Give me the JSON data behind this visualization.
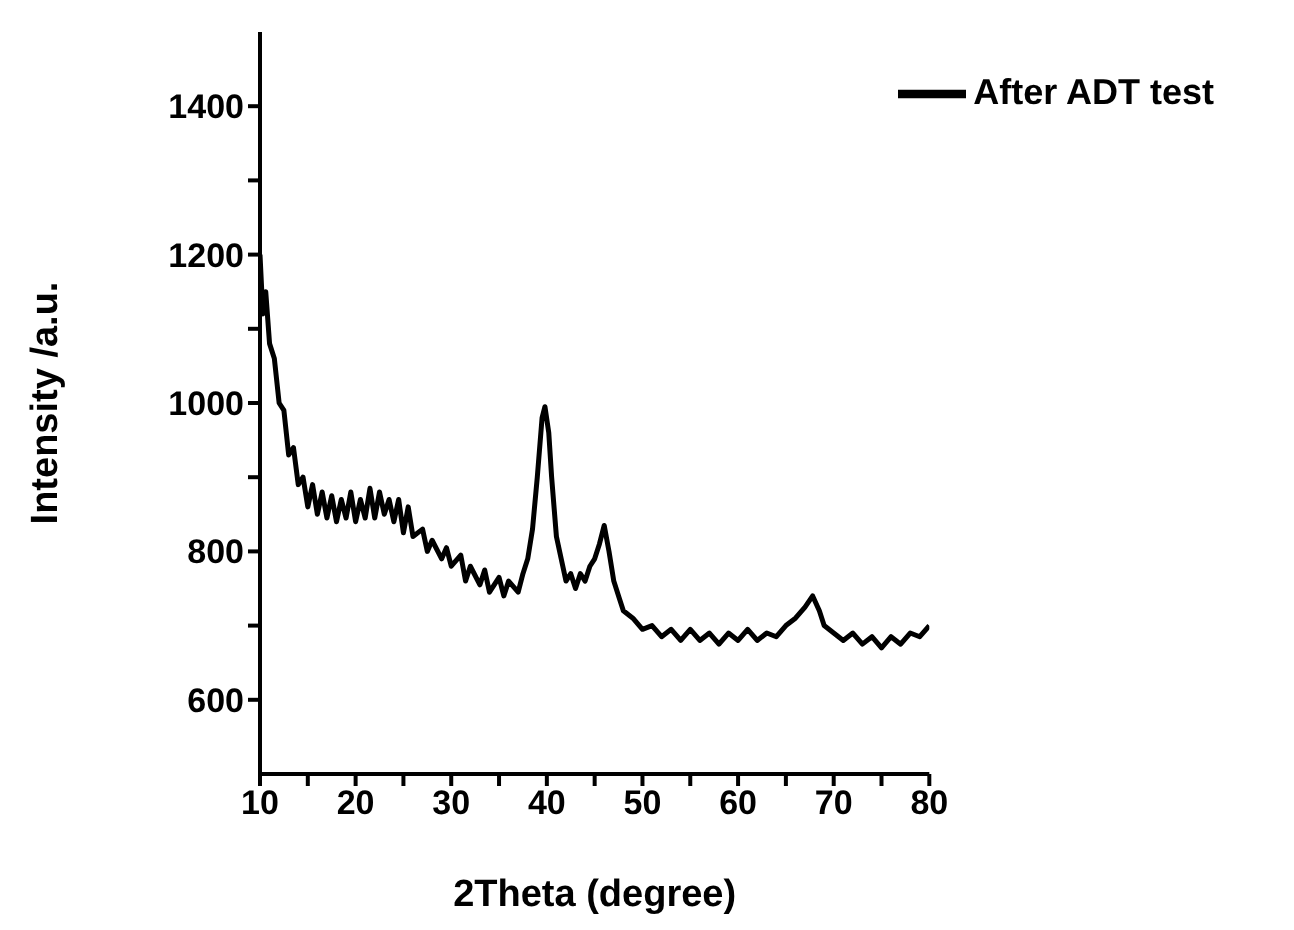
{
  "chart_data": {
    "type": "line",
    "xlabel": "2Theta (degree)",
    "ylabel": "Intensity /a.u.",
    "xlim": [
      10,
      80
    ],
    "xticks": [
      10,
      {
        "value": 15,
        "label": null
      },
      20,
      {
        "value": 25,
        "label": null
      },
      30,
      {
        "value": 35,
        "label": null
      },
      40,
      {
        "value": 45,
        "label": null
      },
      50,
      {
        "value": 55,
        "label": null
      },
      60,
      {
        "value": 65,
        "label": null
      },
      70,
      {
        "value": 75,
        "label": null
      },
      80
    ],
    "ylim": [
      500,
      1500
    ],
    "yticks": [
      600,
      {
        "value": 700,
        "label": null
      },
      800,
      {
        "value": 900,
        "label": null
      },
      1000,
      {
        "value": 1100,
        "label": null
      },
      1200,
      {
        "value": 1300,
        "label": null
      },
      1400
    ],
    "legend": "top right",
    "marker": "none",
    "line_style": "solid",
    "x": [
      10,
      10.3,
      10.6,
      11,
      11.5,
      12,
      12.5,
      13,
      13.5,
      14,
      14.5,
      15,
      15.5,
      16,
      16.5,
      17,
      17.5,
      18,
      18.5,
      19,
      19.5,
      20,
      20.5,
      21,
      21.5,
      22,
      22.5,
      23,
      23.5,
      24,
      24.5,
      25,
      25.5,
      26,
      27,
      27.5,
      28,
      29,
      29.5,
      30,
      31,
      31.5,
      32,
      33,
      33.5,
      34,
      35,
      35.5,
      36,
      37,
      37.5,
      38,
      38.5,
      39,
      39.5,
      39.8,
      40.2,
      40.5,
      41,
      41.5,
      42,
      42.5,
      43,
      43.5,
      44,
      44.5,
      45,
      45.5,
      46,
      46.5,
      47,
      47.5,
      48,
      49,
      50,
      51,
      52,
      53,
      54,
      55,
      56,
      57,
      58,
      59,
      60,
      61,
      62,
      63,
      64,
      65,
      66,
      67,
      67.8,
      68.5,
      69,
      70,
      71,
      72,
      73,
      74,
      75,
      76,
      77,
      78,
      79,
      80
    ],
    "series": [
      {
        "name": "After ADT test",
        "color": "#000000",
        "values": [
          1200,
          1120,
          1150,
          1080,
          1060,
          1000,
          990,
          930,
          940,
          890,
          900,
          860,
          890,
          850,
          880,
          845,
          875,
          840,
          870,
          845,
          880,
          840,
          870,
          845,
          885,
          845,
          880,
          850,
          870,
          840,
          870,
          825,
          860,
          820,
          830,
          800,
          815,
          790,
          805,
          780,
          795,
          760,
          780,
          755,
          775,
          745,
          765,
          740,
          760,
          745,
          770,
          790,
          830,
          900,
          980,
          995,
          960,
          900,
          820,
          790,
          760,
          770,
          750,
          770,
          760,
          780,
          790,
          810,
          835,
          800,
          760,
          740,
          720,
          710,
          695,
          700,
          685,
          695,
          680,
          695,
          680,
          690,
          675,
          690,
          680,
          695,
          680,
          690,
          685,
          700,
          710,
          725,
          740,
          720,
          700,
          690,
          680,
          690,
          675,
          685,
          670,
          685,
          675,
          690,
          685,
          700
        ]
      }
    ]
  }
}
